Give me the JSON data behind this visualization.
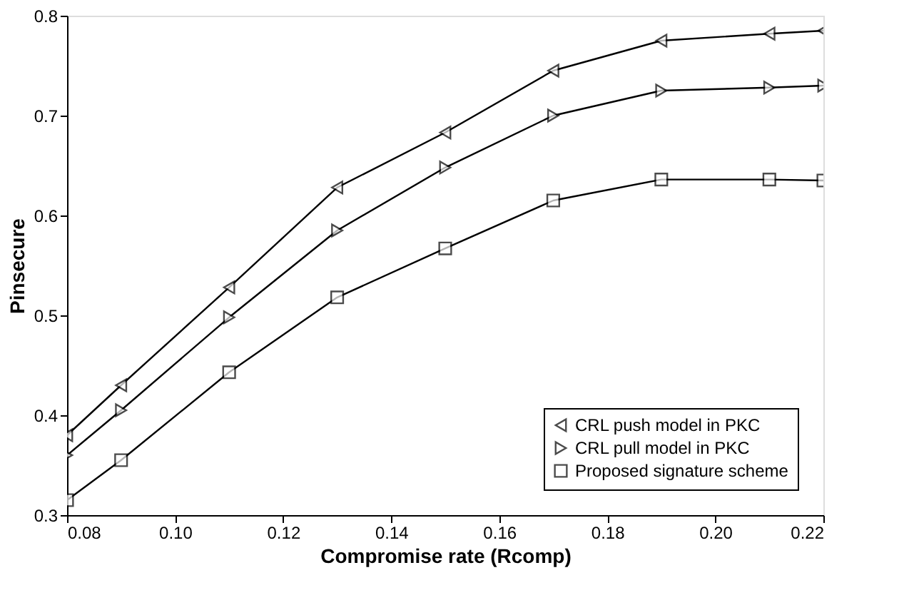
{
  "chart_data": {
    "type": "line",
    "xlabel": "Compromise rate (Rcomp)",
    "ylabel": "Pinsecure",
    "x": [
      0.08,
      0.09,
      0.11,
      0.13,
      0.15,
      0.17,
      0.19,
      0.21,
      0.22
    ],
    "series": [
      {
        "name": "CRL push model in PKC",
        "color": "#000000",
        "marker": "triangle-left",
        "values": [
          0.38,
          0.43,
          0.528,
          0.628,
          0.683,
          0.745,
          0.775,
          0.782,
          0.785
        ]
      },
      {
        "name": "CRL pull model in PKC",
        "color": "#000000",
        "marker": "triangle-right",
        "values": [
          0.36,
          0.405,
          0.498,
          0.585,
          0.648,
          0.7,
          0.725,
          0.728,
          0.73
        ]
      },
      {
        "name": "Proposed signature scheme",
        "color": "#000000",
        "marker": "square",
        "values": [
          0.315,
          0.355,
          0.443,
          0.518,
          0.567,
          0.615,
          0.636,
          0.636,
          0.635
        ]
      }
    ],
    "xlim": [
      0.08,
      0.22
    ],
    "xticks": [
      0.08,
      {
        "value": 0.1,
        "label": "0.10"
      },
      0.12,
      0.14,
      0.16,
      0.18,
      {
        "value": 0.2,
        "label": "0.20"
      },
      0.22
    ],
    "ylim": [
      0.3,
      0.8
    ],
    "yticks": [
      0.3,
      0.4,
      0.5,
      0.6,
      0.7,
      0.8
    ],
    "grid": false,
    "legend": "bottom right",
    "line_style": "solid"
  }
}
